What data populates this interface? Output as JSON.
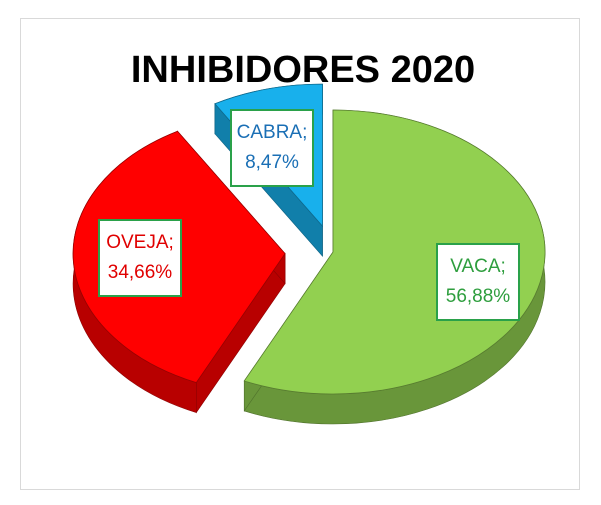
{
  "chart_data": {
    "type": "pie",
    "title": "INHIBIDORES 2020",
    "categories": [
      "VACA;",
      "OVEJA;",
      "CABRA;"
    ],
    "values": [
      56.88,
      34.66,
      8.47
    ],
    "value_labels": [
      "56,88%",
      "34,66%",
      "8,47%"
    ],
    "colors": [
      "#92d050",
      "#ff0000",
      "#18b0ec"
    ]
  }
}
